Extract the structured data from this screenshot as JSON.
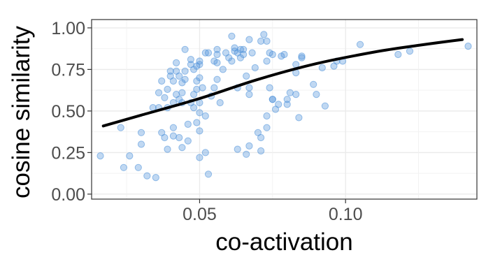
{
  "chart_data": {
    "type": "scatter",
    "xlabel": "co-activation",
    "ylabel": "cosine similarity",
    "xlim": [
      0.013,
      0.145
    ],
    "ylim": [
      -0.03,
      1.05
    ],
    "x_ticks": [
      0.05,
      0.1
    ],
    "x_tick_labels": [
      "0.05",
      "0.10"
    ],
    "y_ticks": [
      0.0,
      0.25,
      0.5,
      0.75,
      1.0
    ],
    "y_tick_labels": [
      "0.00",
      "0.25",
      "0.50",
      "0.75",
      "1.00"
    ],
    "grid": true,
    "legend": "none",
    "point_color": "#4a90d9",
    "line_color": "#000000",
    "series": [
      {
        "type": "scatter",
        "points": [
          [
            0.016,
            0.23
          ],
          [
            0.023,
            0.4
          ],
          [
            0.024,
            0.16
          ],
          [
            0.026,
            0.23
          ],
          [
            0.029,
            0.16
          ],
          [
            0.03,
            0.3
          ],
          [
            0.03,
            0.37
          ],
          [
            0.032,
            0.11
          ],
          [
            0.034,
            0.52
          ],
          [
            0.035,
            0.1
          ],
          [
            0.036,
            0.61
          ],
          [
            0.036,
            0.52
          ],
          [
            0.037,
            0.37
          ],
          [
            0.037,
            0.68
          ],
          [
            0.038,
            0.34
          ],
          [
            0.038,
            0.58
          ],
          [
            0.039,
            0.27
          ],
          [
            0.039,
            0.52
          ],
          [
            0.039,
            0.63
          ],
          [
            0.04,
            0.71
          ],
          [
            0.04,
            0.74
          ],
          [
            0.041,
            0.55
          ],
          [
            0.041,
            0.35
          ],
          [
            0.041,
            0.4
          ],
          [
            0.041,
            0.68
          ],
          [
            0.042,
            0.6
          ],
          [
            0.042,
            0.74
          ],
          [
            0.042,
            0.79
          ],
          [
            0.043,
            0.71
          ],
          [
            0.043,
            0.57
          ],
          [
            0.043,
            0.34
          ],
          [
            0.044,
            0.55
          ],
          [
            0.044,
            0.28
          ],
          [
            0.044,
            0.61
          ],
          [
            0.044,
            0.67
          ],
          [
            0.045,
            0.69
          ],
          [
            0.045,
            0.74
          ],
          [
            0.045,
            0.87
          ],
          [
            0.046,
            0.32
          ],
          [
            0.046,
            0.42
          ],
          [
            0.047,
            0.78
          ],
          [
            0.047,
            0.81
          ],
          [
            0.047,
            0.55
          ],
          [
            0.048,
            0.75
          ],
          [
            0.048,
            0.52
          ],
          [
            0.048,
            0.6
          ],
          [
            0.049,
            0.68
          ],
          [
            0.049,
            0.77
          ],
          [
            0.049,
            0.63
          ],
          [
            0.049,
            0.43
          ],
          [
            0.05,
            0.55
          ],
          [
            0.05,
            0.22
          ],
          [
            0.05,
            0.38
          ],
          [
            0.05,
            0.8
          ],
          [
            0.05,
            0.49
          ],
          [
            0.05,
            0.7
          ],
          [
            0.05,
            0.78
          ],
          [
            0.051,
            0.64
          ],
          [
            0.052,
            0.47
          ],
          [
            0.052,
            0.85
          ],
          [
            0.052,
            0.25
          ],
          [
            0.053,
            0.12
          ],
          [
            0.053,
            0.85
          ],
          [
            0.054,
            0.59
          ],
          [
            0.055,
            0.8
          ],
          [
            0.055,
            0.64
          ],
          [
            0.056,
            0.87
          ],
          [
            0.056,
            0.79
          ],
          [
            0.056,
            0.84
          ],
          [
            0.056,
            0.69
          ],
          [
            0.057,
            0.55
          ],
          [
            0.058,
            0.75
          ],
          [
            0.059,
            0.85
          ],
          [
            0.06,
            0.82
          ],
          [
            0.061,
            0.95
          ],
          [
            0.061,
            0.8
          ],
          [
            0.062,
            0.88
          ],
          [
            0.062,
            0.86
          ],
          [
            0.063,
            0.85
          ],
          [
            0.063,
            0.64
          ],
          [
            0.063,
            0.27
          ],
          [
            0.064,
            0.87
          ],
          [
            0.064,
            0.82
          ],
          [
            0.065,
            0.87
          ],
          [
            0.065,
            0.84
          ],
          [
            0.066,
            0.71
          ],
          [
            0.066,
            0.24
          ],
          [
            0.067,
            0.64
          ],
          [
            0.067,
            0.93
          ],
          [
            0.067,
            0.29
          ],
          [
            0.067,
            0.6
          ],
          [
            0.068,
            0.85
          ],
          [
            0.069,
            0.76
          ],
          [
            0.07,
            0.37
          ],
          [
            0.071,
            0.26
          ],
          [
            0.071,
            0.34
          ],
          [
            0.071,
            0.92
          ],
          [
            0.072,
            0.96
          ],
          [
            0.073,
            0.47
          ],
          [
            0.073,
            0.4
          ],
          [
            0.073,
            0.8
          ],
          [
            0.073,
            0.92
          ],
          [
            0.074,
            0.64
          ],
          [
            0.074,
            0.85
          ],
          [
            0.075,
            0.57
          ],
          [
            0.075,
            0.57
          ],
          [
            0.075,
            0.84
          ],
          [
            0.076,
            0.51
          ],
          [
            0.077,
            0.54
          ],
          [
            0.078,
            0.83
          ],
          [
            0.079,
            0.84
          ],
          [
            0.08,
            0.57
          ],
          [
            0.08,
            0.54
          ],
          [
            0.081,
            0.61
          ],
          [
            0.083,
            0.78
          ],
          [
            0.083,
            0.6
          ],
          [
            0.083,
            0.73
          ],
          [
            0.084,
            0.46
          ],
          [
            0.085,
            0.83
          ],
          [
            0.085,
            0.82
          ],
          [
            0.089,
            0.66
          ],
          [
            0.09,
            0.6
          ],
          [
            0.092,
            0.76
          ],
          [
            0.093,
            0.53
          ],
          [
            0.096,
            0.77
          ],
          [
            0.097,
            0.8
          ],
          [
            0.099,
            0.8
          ],
          [
            0.105,
            0.9
          ],
          [
            0.118,
            0.84
          ],
          [
            0.122,
            0.86
          ],
          [
            0.142,
            0.89
          ]
        ]
      },
      {
        "type": "line",
        "smooth": true,
        "points": [
          [
            0.017,
            0.41
          ],
          [
            0.03,
            0.475
          ],
          [
            0.05,
            0.575
          ],
          [
            0.07,
            0.69
          ],
          [
            0.09,
            0.785
          ],
          [
            0.11,
            0.855
          ],
          [
            0.125,
            0.895
          ],
          [
            0.14,
            0.93
          ]
        ]
      }
    ]
  }
}
